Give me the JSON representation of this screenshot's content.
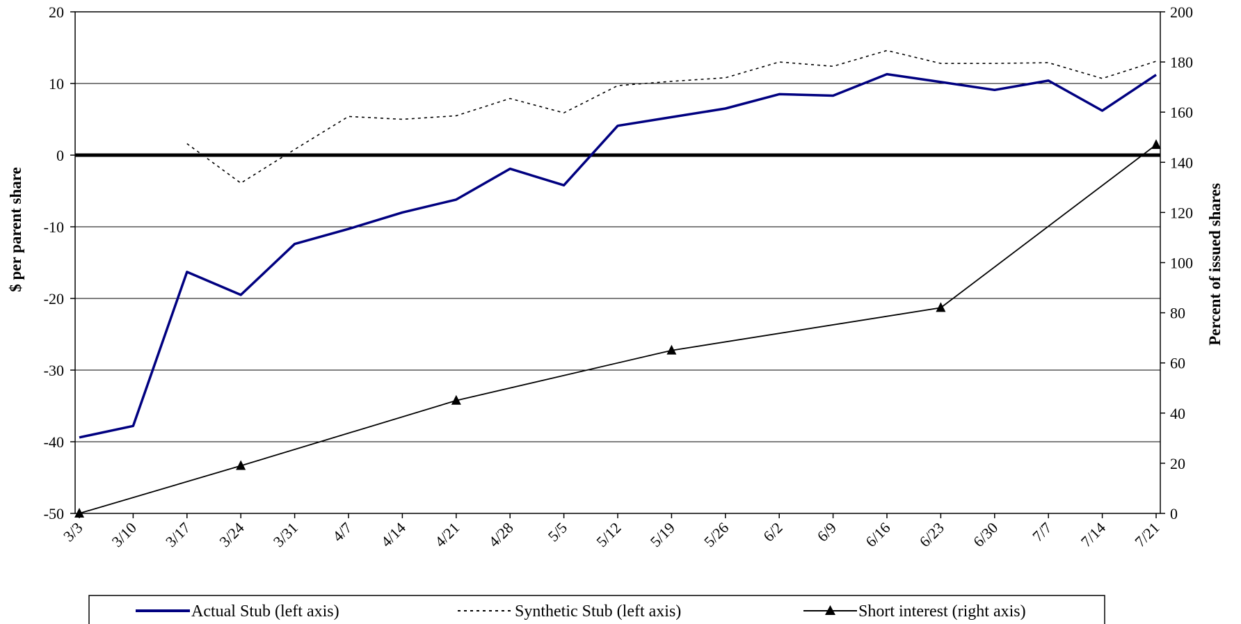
{
  "chart_data": {
    "type": "line",
    "title": "",
    "x": [
      "3/3",
      "3/10",
      "3/17",
      "3/24",
      "3/31",
      "4/7",
      "4/14",
      "4/21",
      "4/28",
      "5/5",
      "5/12",
      "5/19",
      "5/26",
      "6/2",
      "6/9",
      "6/16",
      "6/23",
      "6/30",
      "7/7",
      "7/14",
      "7/21"
    ],
    "y_left": {
      "label": "$ per parent share",
      "ylim": [
        -50,
        20
      ],
      "ticks": [
        "20",
        "10",
        "0",
        "-10",
        "-20",
        "-30",
        "-40",
        "-50"
      ],
      "tick_values": [
        20,
        10,
        0,
        -10,
        -20,
        -30,
        -40,
        -50
      ]
    },
    "y_right": {
      "label": "Percent of issued shares",
      "ylim": [
        0,
        200
      ],
      "ticks": [
        "200",
        "180",
        "160",
        "140",
        "120",
        "100",
        "80",
        "60",
        "40",
        "20",
        "0"
      ],
      "tick_values": [
        200,
        180,
        160,
        140,
        120,
        100,
        80,
        60,
        40,
        20,
        0
      ]
    },
    "grid": true,
    "zero_line": true,
    "legend_position": "bottom",
    "series": [
      {
        "name": "Actual Stub (left axis)",
        "axis": "left",
        "style": "solid",
        "color": "#000080",
        "points": [
          [
            "3/3",
            -39.4
          ],
          [
            "3/10",
            -37.8
          ],
          [
            "3/17",
            -16.3
          ],
          [
            "3/24",
            -19.5
          ],
          [
            "3/31",
            -12.4
          ],
          [
            "4/7",
            -10.3
          ],
          [
            "4/14",
            -8.0
          ],
          [
            "4/21",
            -6.2
          ],
          [
            "4/28",
            -1.9
          ],
          [
            "5/5",
            -4.2
          ],
          [
            "5/12",
            4.1
          ],
          [
            "5/19",
            5.3
          ],
          [
            "5/26",
            6.5
          ],
          [
            "6/2",
            8.5
          ],
          [
            "6/9",
            8.3
          ],
          [
            "6/16",
            11.3
          ],
          [
            "6/23",
            10.2
          ],
          [
            "6/30",
            9.1
          ],
          [
            "7/7",
            10.4
          ],
          [
            "7/14",
            6.2
          ],
          [
            "7/21",
            11.2
          ]
        ]
      },
      {
        "name": "Synthetic Stub (left axis)",
        "axis": "left",
        "style": "dotted",
        "color": "#000000",
        "points": [
          [
            "3/17",
            1.6
          ],
          [
            "3/24",
            -3.9
          ],
          [
            "3/31",
            0.8
          ],
          [
            "4/7",
            5.4
          ],
          [
            "4/14",
            5.0
          ],
          [
            "4/21",
            5.5
          ],
          [
            "4/28",
            7.9
          ],
          [
            "5/5",
            5.9
          ],
          [
            "5/12",
            9.7
          ],
          [
            "5/19",
            10.3
          ],
          [
            "5/26",
            10.8
          ],
          [
            "6/2",
            13.0
          ],
          [
            "6/9",
            12.4
          ],
          [
            "6/16",
            14.6
          ],
          [
            "6/23",
            12.8
          ],
          [
            "6/30",
            12.8
          ],
          [
            "7/7",
            12.9
          ],
          [
            "7/14",
            10.7
          ],
          [
            "7/21",
            13.1
          ]
        ]
      },
      {
        "name": "Short interest (right axis)",
        "axis": "right",
        "style": "solid-with-triangles",
        "color": "#000000",
        "points": [
          [
            "3/3",
            0
          ],
          [
            "3/24",
            19
          ],
          [
            "4/21",
            45
          ],
          [
            "5/19",
            65
          ],
          [
            "6/23",
            82
          ],
          [
            "7/21",
            147
          ]
        ]
      }
    ]
  }
}
